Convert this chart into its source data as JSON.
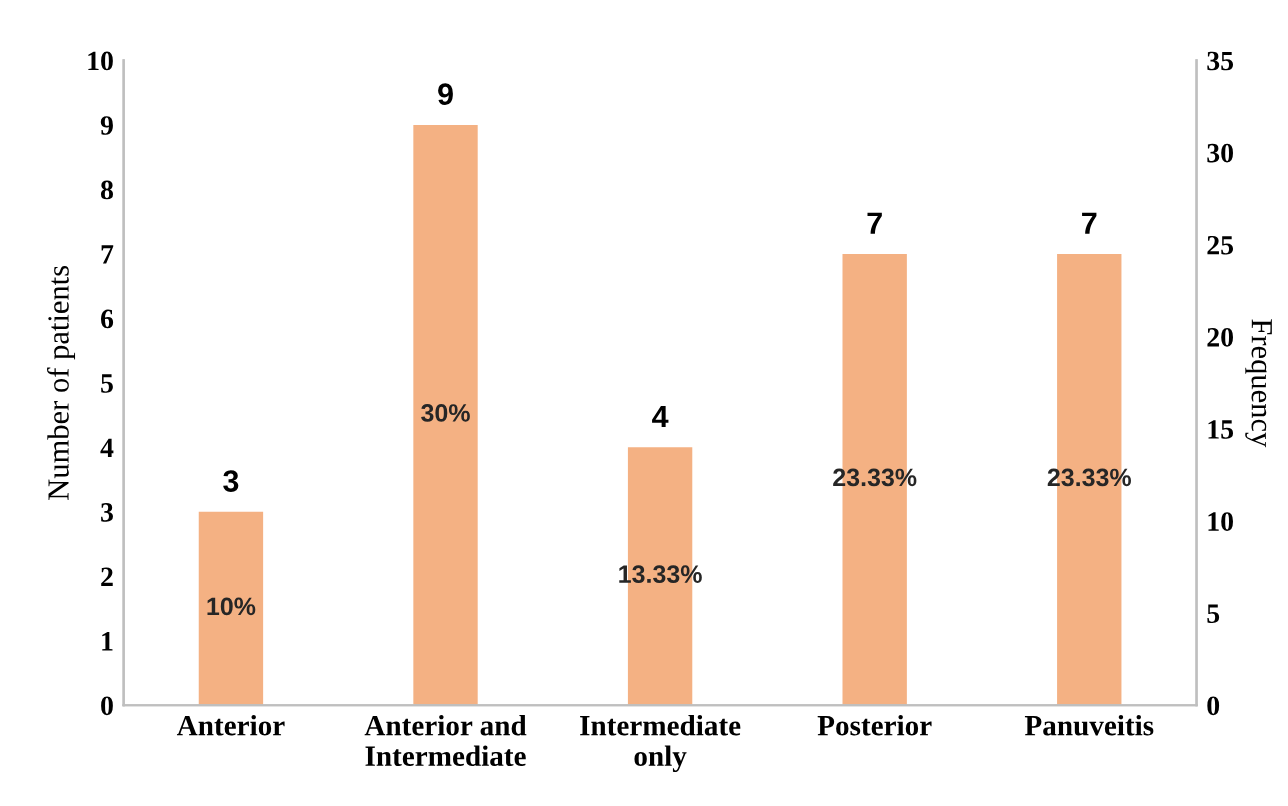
{
  "chart_data": {
    "type": "bar",
    "ylabel": "Number of patients",
    "y2label": "Frequency",
    "categories": [
      "Anterior",
      "Anterior and\nIntermediate",
      "Intermediate\nonly",
      "Posterior",
      "Panuveitis"
    ],
    "values": [
      3,
      9,
      4,
      7,
      7
    ],
    "color": "#f4b183",
    "ylim": [
      0,
      10
    ],
    "yticks": [
      0,
      1,
      2,
      3,
      4,
      5,
      6,
      7,
      8,
      9,
      10
    ],
    "y2lim": [
      0,
      35
    ],
    "y2ticks": [
      0,
      5,
      10,
      15,
      20,
      25,
      30,
      35
    ],
    "data_labels": true,
    "grid": false,
    "legend": false,
    "annotations": [
      "10%",
      "30%",
      "13.33%",
      "23.33%",
      "23.33%"
    ]
  }
}
